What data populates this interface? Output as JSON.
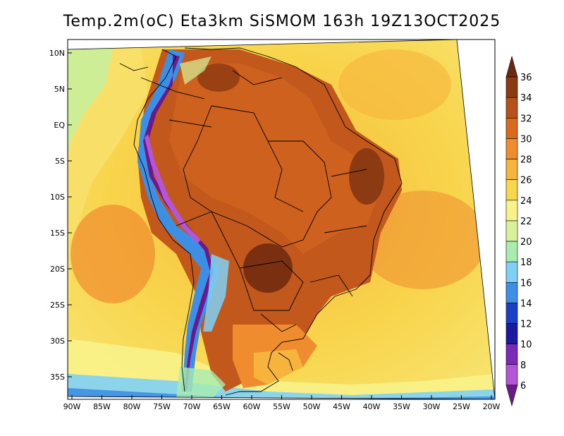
{
  "title": "Temp.2m(oC) Eta3km SiSMOM 163h 19Z13OCT2025",
  "lat_labels": [
    "10N",
    "5N",
    "EQ",
    "5S",
    "10S",
    "15S",
    "20S",
    "25S",
    "30S",
    "35S"
  ],
  "lon_labels": [
    "90W",
    "85W",
    "80W",
    "75W",
    "70W",
    "65W",
    "60W",
    "55W",
    "50W",
    "45W",
    "40W",
    "35W",
    "30W",
    "25W",
    "20W"
  ],
  "colorbar": {
    "labels": [
      "36",
      "34",
      "32",
      "30",
      "28",
      "26",
      "24",
      "22",
      "20",
      "18",
      "16",
      "14",
      "12",
      "10",
      "8",
      "6"
    ],
    "colors": [
      "#6b2a10",
      "#8c3a12",
      "#b8501a",
      "#d9691f",
      "#ef8c2e",
      "#f6b43c",
      "#f7d84c",
      "#f8f28a",
      "#d7f29a",
      "#a8ecb0",
      "#7fd0f5",
      "#3d8fe6",
      "#1c3fc8",
      "#1a1a9e",
      "#7a2ab8",
      "#b455d6",
      "#6a1a8a"
    ]
  }
}
